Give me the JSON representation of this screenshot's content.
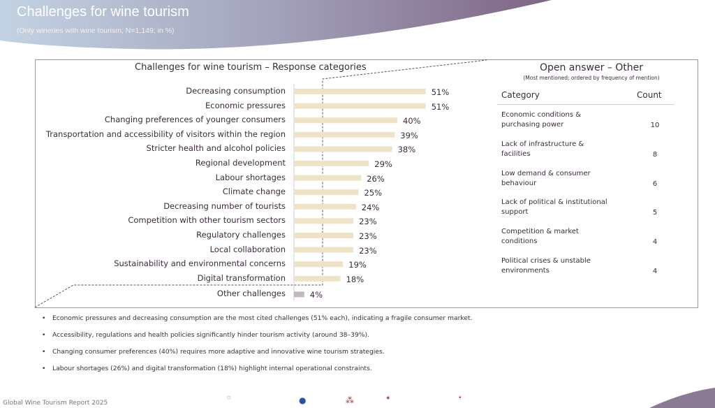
{
  "header": {
    "title": "Challenges for wine tourism",
    "subtitle": "(Only wineries with wine tourism; N=1,149; in %)"
  },
  "chart_data": {
    "type": "bar",
    "orientation": "horizontal",
    "title": "Challenges for wine tourism – Response categories",
    "categories": [
      "Decreasing consumption",
      "Economic pressures",
      "Changing preferences of younger consumers",
      "Transportation and accessibility of visitors within the region",
      "Stricter health and alcohol policies",
      "Regional development",
      "Labour shortages",
      "Climate change",
      "Decreasing number of tourists",
      "Competition with other tourism sectors",
      "Regulatory challenges",
      "Local collaboration",
      "Sustainability and environmental concerns",
      "Digital transformation",
      "Other challenges"
    ],
    "values": [
      51,
      51,
      40,
      39,
      38,
      29,
      26,
      25,
      24,
      23,
      23,
      23,
      19,
      18,
      4
    ],
    "labels": [
      "51%",
      "51%",
      "40%",
      "39%",
      "38%",
      "29%",
      "26%",
      "25%",
      "24%",
      "23%",
      "23%",
      "23%",
      "19%",
      "18%",
      "4%"
    ],
    "colors": {
      "bar": "#efe3c6",
      "other": "#c4b6c3"
    }
  },
  "open_answer": {
    "title": "Open answer – Other",
    "subtitle": "(Most mentioned; ordered by frequency of mention)",
    "headers": [
      "Category",
      "Count"
    ],
    "rows": [
      {
        "category": "Economic conditions & purchasing power",
        "count": "10"
      },
      {
        "category": "Lack of infrastructure & facilities",
        "count": "8"
      },
      {
        "category": "Low demand & consumer behaviour",
        "count": "6"
      },
      {
        "category": "Lack of political & institutional support",
        "count": "5"
      },
      {
        "category": "Competition & market conditions",
        "count": "4"
      },
      {
        "category": "Political crises & unstable environments",
        "count": "4"
      }
    ]
  },
  "bullets": [
    "Economic pressures and decreasing consumption are the most cited challenges (51% each), indicating a fragile consumer market.",
    "Accessibility, regulations and health policies significantly hinder tourism activity (around 38–39%).",
    "Changing consumer preferences (40%) requires more adaptive and innovative wine tourism strategies.",
    "Labour shortages (26%) and digital transformation (18%) highlight internal operational constraints."
  ],
  "footer": "Global Wine Tourism Report 2025",
  "logos": [
    "Hochschule Geisenheim University",
    "Great Wine Capitals",
    "WINETOURISM.COM"
  ]
}
